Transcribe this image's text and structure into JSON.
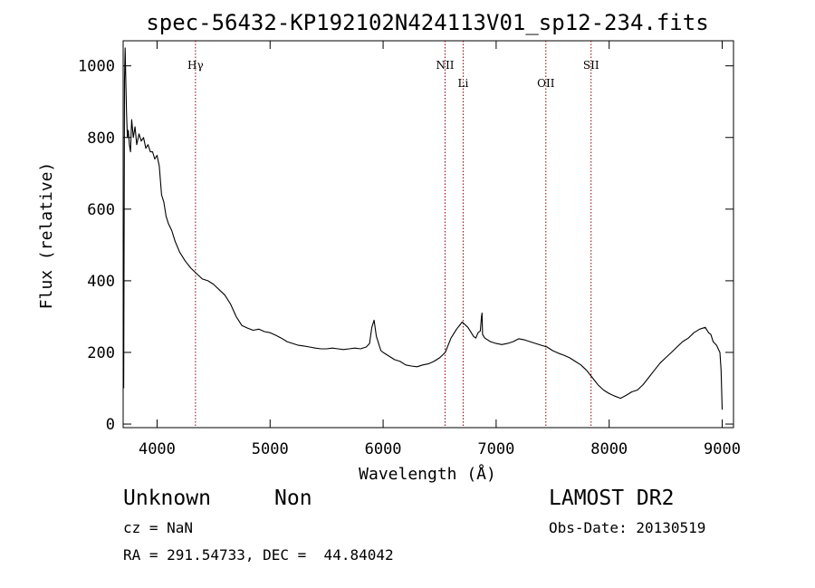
{
  "chart_data": {
    "type": "line",
    "title": "spec-56432-KP192102N424113V01_sp12-234.fits",
    "xlabel": "Wavelength (Å)",
    "ylabel": "Flux (relative)",
    "xlim": [
      3700,
      9100
    ],
    "ylim": [
      -10,
      1070
    ],
    "x_ticks": [
      4000,
      5000,
      6000,
      7000,
      8000,
      9000
    ],
    "y_ticks": [
      0,
      200,
      400,
      600,
      800,
      1000
    ],
    "grid": false,
    "line_color": "#000000",
    "marker_color": "#8b0000",
    "series": [
      {
        "x": [
          3705,
          3712,
          3718,
          3724,
          3730,
          3738,
          3746,
          3755,
          3765,
          3775,
          3790,
          3805,
          3820,
          3840,
          3860,
          3880,
          3900,
          3920,
          3940,
          3960,
          3980,
          4000,
          4020,
          4040,
          4060,
          4080,
          4100,
          4130,
          4160,
          4200,
          4250,
          4300,
          4350,
          4400,
          4450,
          4500,
          4550,
          4600,
          4650,
          4700,
          4750,
          4800,
          4850,
          4900,
          4950,
          5000,
          5050,
          5100,
          5150,
          5200,
          5250,
          5300,
          5350,
          5400,
          5450,
          5500,
          5550,
          5600,
          5650,
          5700,
          5750,
          5800,
          5850,
          5880,
          5900,
          5920,
          5940,
          5960,
          5980,
          6000,
          6050,
          6100,
          6150,
          6200,
          6250,
          6300,
          6350,
          6400,
          6450,
          6500,
          6550,
          6600,
          6650,
          6700,
          6750,
          6780,
          6800,
          6820,
          6840,
          6860,
          6870,
          6875,
          6880,
          6900,
          6950,
          7000,
          7050,
          7100,
          7150,
          7200,
          7250,
          7300,
          7350,
          7400,
          7450,
          7500,
          7550,
          7600,
          7650,
          7700,
          7750,
          7800,
          7850,
          7900,
          7950,
          8000,
          8050,
          8100,
          8150,
          8200,
          8250,
          8300,
          8350,
          8400,
          8450,
          8500,
          8550,
          8600,
          8650,
          8700,
          8750,
          8800,
          8850,
          8880,
          8900,
          8920,
          8950,
          8980,
          8990,
          9000
        ],
        "y": [
          100,
          960,
          1050,
          950,
          870,
          800,
          820,
          780,
          760,
          850,
          800,
          830,
          780,
          810,
          790,
          800,
          770,
          780,
          760,
          760,
          740,
          750,
          720,
          640,
          620,
          580,
          560,
          540,
          510,
          480,
          455,
          435,
          420,
          405,
          400,
          390,
          375,
          360,
          335,
          300,
          275,
          268,
          262,
          265,
          258,
          255,
          248,
          240,
          230,
          225,
          220,
          218,
          215,
          212,
          210,
          210,
          212,
          210,
          208,
          210,
          212,
          210,
          215,
          225,
          270,
          290,
          245,
          225,
          205,
          200,
          190,
          180,
          175,
          165,
          162,
          160,
          165,
          168,
          175,
          185,
          200,
          240,
          265,
          285,
          270,
          255,
          245,
          240,
          255,
          260,
          300,
          310,
          250,
          240,
          230,
          225,
          222,
          225,
          230,
          238,
          235,
          230,
          225,
          220,
          215,
          205,
          198,
          192,
          185,
          175,
          165,
          150,
          130,
          110,
          95,
          85,
          78,
          72,
          80,
          90,
          95,
          110,
          130,
          150,
          170,
          185,
          200,
          215,
          230,
          240,
          255,
          265,
          270,
          255,
          250,
          230,
          220,
          200,
          150,
          40
        ]
      }
    ],
    "annotations": [
      {
        "label": "Hγ",
        "x": 4340,
        "row": "top"
      },
      {
        "label": "NII",
        "x": 6548,
        "row": "top"
      },
      {
        "label": "Li",
        "x": 6708,
        "row": "low"
      },
      {
        "label": "OII",
        "x": 7440,
        "row": "low"
      },
      {
        "label": "SII",
        "x": 7840,
        "row": "top"
      }
    ]
  },
  "info": {
    "object_class": "Unknown",
    "subclass": "Non",
    "survey": "LAMOST DR2",
    "redshift": "cz = NaN",
    "obs_date": "Obs-Date: 20130519",
    "coords": "RA = 291.54733, DEC =  44.84042"
  }
}
